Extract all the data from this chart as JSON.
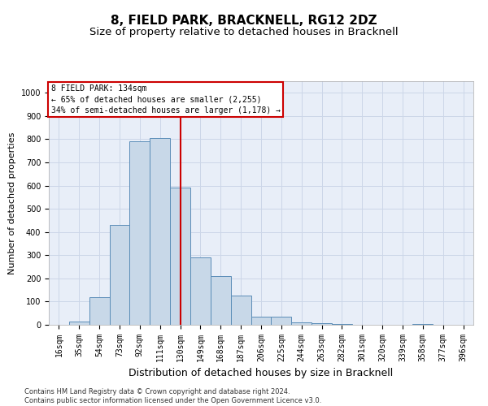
{
  "title": "8, FIELD PARK, BRACKNELL, RG12 2DZ",
  "subtitle": "Size of property relative to detached houses in Bracknell",
  "xlabel": "Distribution of detached houses by size in Bracknell",
  "ylabel": "Number of detached properties",
  "footnote": "Contains HM Land Registry data © Crown copyright and database right 2024.\nContains public sector information licensed under the Open Government Licence v3.0.",
  "bin_labels": [
    "16sqm",
    "35sqm",
    "54sqm",
    "73sqm",
    "92sqm",
    "111sqm",
    "130sqm",
    "149sqm",
    "168sqm",
    "187sqm",
    "206sqm",
    "225sqm",
    "244sqm",
    "263sqm",
    "282sqm",
    "301sqm",
    "320sqm",
    "339sqm",
    "358sqm",
    "377sqm",
    "396sqm"
  ],
  "bar_heights": [
    0,
    15,
    120,
    430,
    790,
    805,
    590,
    290,
    210,
    125,
    35,
    35,
    10,
    8,
    5,
    0,
    0,
    0,
    5,
    0,
    0
  ],
  "bar_color": "#c8d8e8",
  "bar_edge_color": "#5b8db8",
  "vline_index": 6,
  "vline_color": "#cc0000",
  "annotation_text": "8 FIELD PARK: 134sqm\n← 65% of detached houses are smaller (2,255)\n34% of semi-detached houses are larger (1,178) →",
  "annotation_box_color": "#cc0000",
  "ylim": [
    0,
    1050
  ],
  "yticks": [
    0,
    100,
    200,
    300,
    400,
    500,
    600,
    700,
    800,
    900,
    1000
  ],
  "grid_color": "#ccd6e8",
  "background_color": "#e8eef8",
  "title_fontsize": 11,
  "subtitle_fontsize": 9.5,
  "ylabel_fontsize": 8,
  "xlabel_fontsize": 9,
  "tick_fontsize": 7,
  "annotation_fontsize": 7,
  "footnote_fontsize": 6
}
